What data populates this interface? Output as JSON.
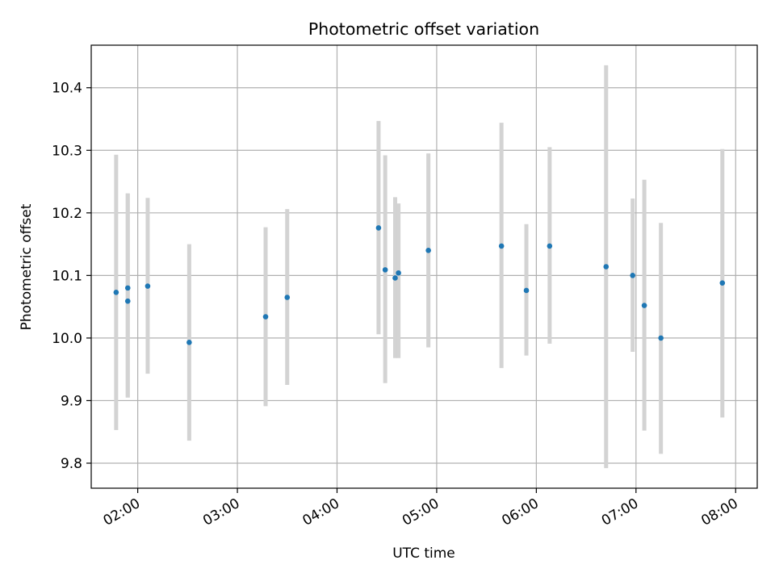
{
  "chart_data": {
    "type": "scatter",
    "title": "Photometric offset variation",
    "xlabel": "UTC time",
    "ylabel": "Photometric offset",
    "x_type": "time",
    "x_range": [
      "01:32",
      "08:13"
    ],
    "ylim": [
      9.76,
      10.468
    ],
    "grid": true,
    "colors": {
      "points": "#1f77b4",
      "errorbars": "#d3d3d3",
      "grid": "#b0b0b0",
      "frame": "#000000"
    },
    "x_ticks": [
      "02:00",
      "03:00",
      "04:00",
      "05:00",
      "06:00",
      "07:00",
      "08:00"
    ],
    "y_ticks": [
      9.8,
      9.9,
      10.0,
      10.1,
      10.2,
      10.3,
      10.4
    ],
    "y_tick_labels": [
      "9.8",
      "9.9",
      "10.0",
      "10.1",
      "10.2",
      "10.3",
      "10.4"
    ],
    "points": [
      {
        "t": "01:47",
        "y": 10.073,
        "lo": 9.853,
        "hi": 10.293
      },
      {
        "t": "01:54",
        "y": 10.059,
        "lo": 9.905,
        "hi": 10.231
      },
      {
        "t": "01:54",
        "y": 10.08,
        "lo": 9.905,
        "hi": 10.231
      },
      {
        "t": "02:06",
        "y": 10.083,
        "lo": 9.943,
        "hi": 10.224
      },
      {
        "t": "02:31",
        "y": 9.993,
        "lo": 9.836,
        "hi": 10.15
      },
      {
        "t": "03:17",
        "y": 10.034,
        "lo": 9.891,
        "hi": 10.177
      },
      {
        "t": "03:30",
        "y": 10.065,
        "lo": 9.925,
        "hi": 10.206
      },
      {
        "t": "04:25",
        "y": 10.176,
        "lo": 10.006,
        "hi": 10.347
      },
      {
        "t": "04:29",
        "y": 10.109,
        "lo": 9.928,
        "hi": 10.292
      },
      {
        "t": "04:35",
        "y": 10.096,
        "lo": 9.968,
        "hi": 10.225
      },
      {
        "t": "04:37",
        "y": 10.104,
        "lo": 9.968,
        "hi": 10.215
      },
      {
        "t": "04:55",
        "y": 10.14,
        "lo": 9.985,
        "hi": 10.295
      },
      {
        "t": "05:39",
        "y": 10.147,
        "lo": 9.952,
        "hi": 10.344
      },
      {
        "t": "05:54",
        "y": 10.076,
        "lo": 9.972,
        "hi": 10.182
      },
      {
        "t": "06:08",
        "y": 10.147,
        "lo": 9.991,
        "hi": 10.305
      },
      {
        "t": "06:42",
        "y": 10.114,
        "lo": 9.792,
        "hi": 10.436
      },
      {
        "t": "06:58",
        "y": 10.1,
        "lo": 9.978,
        "hi": 10.223
      },
      {
        "t": "07:05",
        "y": 10.052,
        "lo": 9.852,
        "hi": 10.253
      },
      {
        "t": "07:15",
        "y": 10.0,
        "lo": 9.815,
        "hi": 10.184
      },
      {
        "t": "07:52",
        "y": 10.088,
        "lo": 9.873,
        "hi": 10.302
      }
    ]
  }
}
